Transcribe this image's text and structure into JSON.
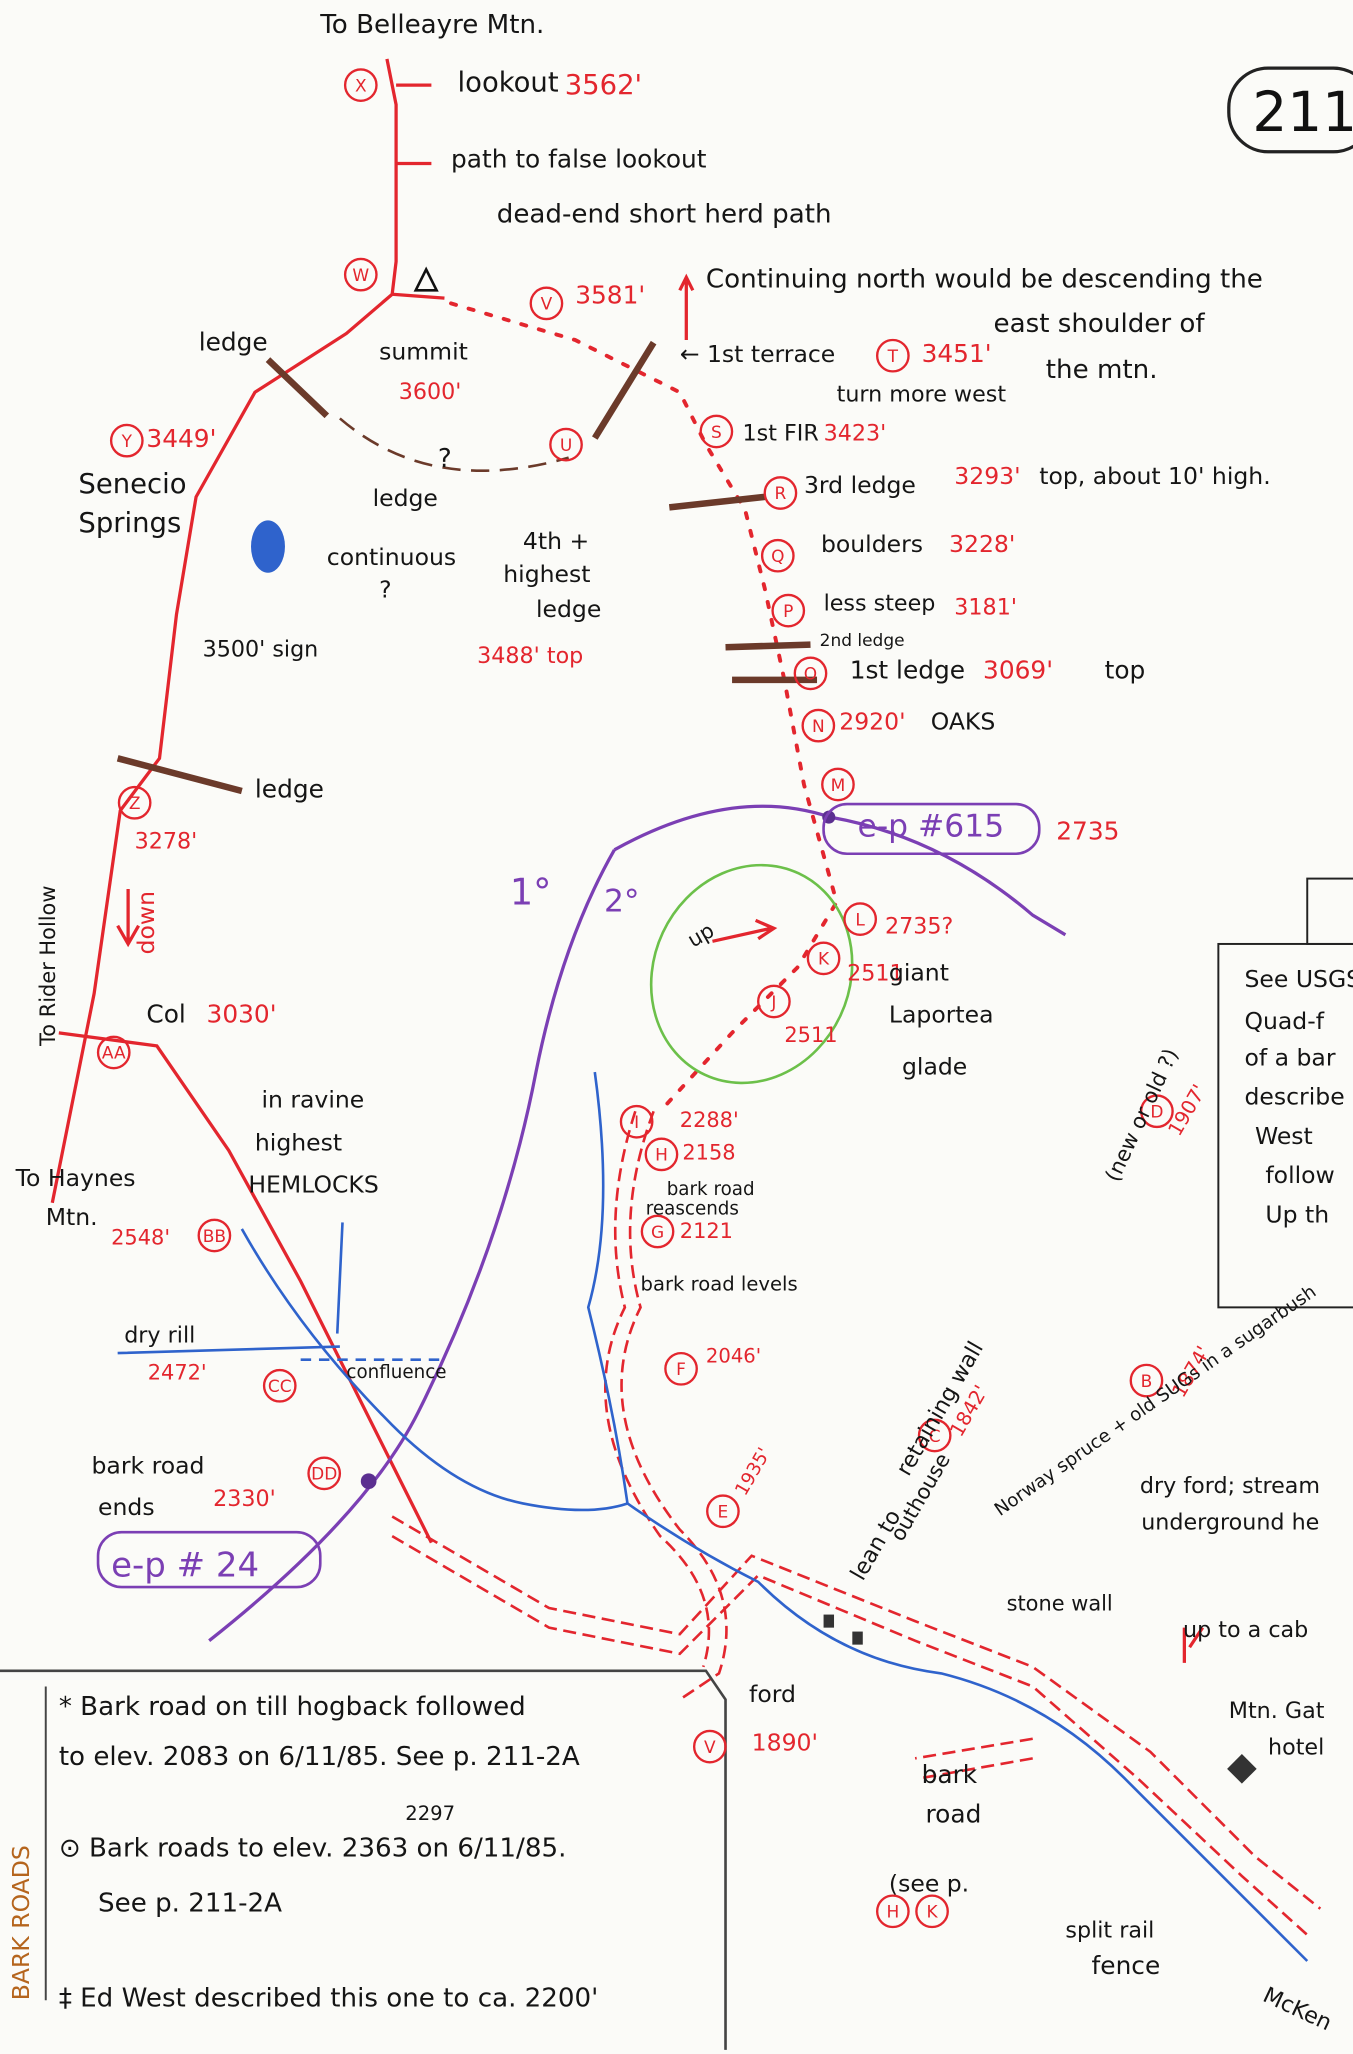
{
  "page_number": "211",
  "waypoints": [
    "X",
    "W",
    "V",
    "T",
    "S",
    "U",
    "Y",
    "R",
    "Q",
    "P",
    "O",
    "N",
    "M",
    "Z",
    "L",
    "K",
    "J",
    "AA",
    "I",
    "H",
    "G",
    "D",
    "F",
    "BB",
    "CC",
    "C",
    "B",
    "DD",
    "E"
  ],
  "labels": [
    "To Belleayre Mtn.",
    "lookout",
    "3562'",
    "path to false lookout",
    "dead-end short herd path",
    "summit",
    "3600'",
    "3581'",
    "Continuing north would be descending the",
    "east shoulder of",
    "the mtn.",
    "ledge",
    "← 1st terrace",
    "3451'",
    "turn more west",
    "1st FIR",
    "3423'",
    "?",
    "3449'",
    "Senecio",
    "Springs",
    "ledge",
    "continuous",
    "?",
    "4th +",
    "highest",
    "ledge",
    "3488' top",
    "3rd ledge",
    "3293'",
    "top, about 10' high.",
    "boulders",
    "3228'",
    "less steep",
    "3181'",
    "2nd ledge",
    "1st ledge",
    "3069'",
    "top",
    "2920'",
    "OAKS",
    "3500' sign",
    "ledge",
    "3278'",
    "e-p #615",
    "2735",
    "1°",
    "2°",
    "down",
    "To Rider Hollow",
    "2735?",
    "2511",
    "giant",
    "Laportea",
    "glade",
    "up",
    "2511",
    "Col",
    "3030'",
    "To Haynes",
    "Mtn.",
    "in ravine",
    "highest",
    "HEMLOCKS",
    "2288'",
    "2158",
    "bark road",
    "reascends",
    "2121",
    "bark road levels",
    "1907'",
    "(new or old ?)",
    "See USGS",
    "Quad-f",
    "of a bar",
    "describe",
    "West",
    "follow",
    "Up th",
    "2548'",
    "dry rill",
    "2472'",
    "confluence",
    "2046'",
    "retaining wall",
    "1842'",
    "lean to",
    "outhouse",
    "1874'",
    "Norway spruce + old SUGs in a sugarbush",
    "bark road",
    "ends",
    "2330'",
    "e-p # 24",
    "1935'",
    "dry ford; stream",
    "underground he",
    "stone wall",
    "up to a cab",
    "Mtn. Gat",
    "hotel",
    "ford",
    "1890'",
    "bark",
    "road",
    "(see p.",
    "split rail",
    "fence",
    "McKen"
  ],
  "legend": {
    "title": "BARK ROADS",
    "lines": [
      "* Bark road on till hogback followed",
      "to elev. 2083 on 6/11/85. See p. 211-2A",
      "2297",
      "⊙ Bark roads to elev. 2363 on 6/11/85.",
      "See p. 211-2A",
      "‡ Ed West described this one to ca. 2200'"
    ],
    "markers": [
      "V",
      "H",
      "K"
    ]
  }
}
